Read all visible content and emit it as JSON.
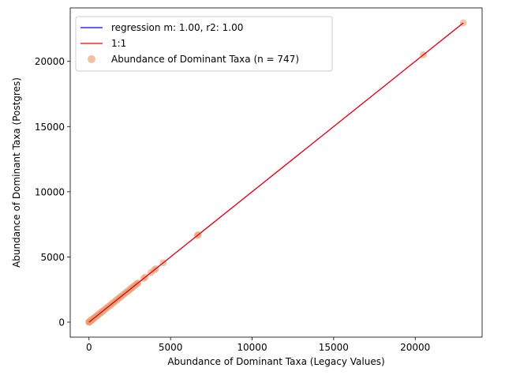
{
  "chart_data": {
    "type": "scatter",
    "title": "",
    "xlabel": "Abundance of Dominant Taxa (Legacy Values)",
    "ylabel": "Abundance of Dominant Taxa (Postgres)",
    "xlim": [
      -1150,
      24100
    ],
    "ylim": [
      -1150,
      24100
    ],
    "xticks": [
      0,
      5000,
      10000,
      15000,
      20000
    ],
    "yticks": [
      0,
      5000,
      10000,
      15000,
      20000
    ],
    "grid": false,
    "legend_position": "top-left",
    "legend": [
      {
        "kind": "line",
        "label": "regression m: 1.00, r2: 1.00",
        "color": "#0000ff"
      },
      {
        "kind": "line",
        "label": "1:1",
        "color": "#ff0000"
      },
      {
        "kind": "marker",
        "label": "Abundance of Dominant Taxa (n = 747)",
        "color": "#e8a070"
      }
    ],
    "series": [
      {
        "kind": "scatter",
        "color": "#e8a070",
        "x": [
          0,
          10,
          20,
          35,
          50,
          70,
          90,
          110,
          140,
          170,
          200,
          240,
          280,
          320,
          370,
          420,
          480,
          540,
          600,
          660,
          730,
          800,
          870,
          950,
          1030,
          1110,
          1200,
          1290,
          1380,
          1470,
          1560,
          1650,
          1740,
          1830,
          1920,
          2010,
          2100,
          2190,
          2280,
          2370,
          2460,
          2550,
          2620,
          2700,
          2790,
          2880,
          2950,
          3000,
          3350,
          3450,
          3800,
          4000,
          4100,
          4550,
          6650,
          6700,
          20500,
          22950
        ],
        "y": [
          0,
          10,
          20,
          35,
          50,
          70,
          90,
          110,
          140,
          170,
          200,
          240,
          280,
          320,
          370,
          420,
          480,
          540,
          600,
          660,
          730,
          800,
          870,
          950,
          1030,
          1110,
          1200,
          1290,
          1380,
          1470,
          1560,
          1650,
          1740,
          1830,
          1920,
          2010,
          2100,
          2190,
          2280,
          2370,
          2460,
          2550,
          2620,
          2700,
          2790,
          2880,
          2950,
          3000,
          3350,
          3450,
          3800,
          4000,
          4100,
          4550,
          6650,
          6700,
          20500,
          22950
        ]
      },
      {
        "kind": "line",
        "name": "regression m: 1.00, r2: 1.00",
        "color": "#0000ff",
        "x": [
          0,
          22950
        ],
        "y": [
          0,
          22950
        ]
      },
      {
        "kind": "line",
        "name": "1:1",
        "color": "#ff0000",
        "x": [
          0,
          22950
        ],
        "y": [
          0,
          22950
        ]
      }
    ]
  }
}
